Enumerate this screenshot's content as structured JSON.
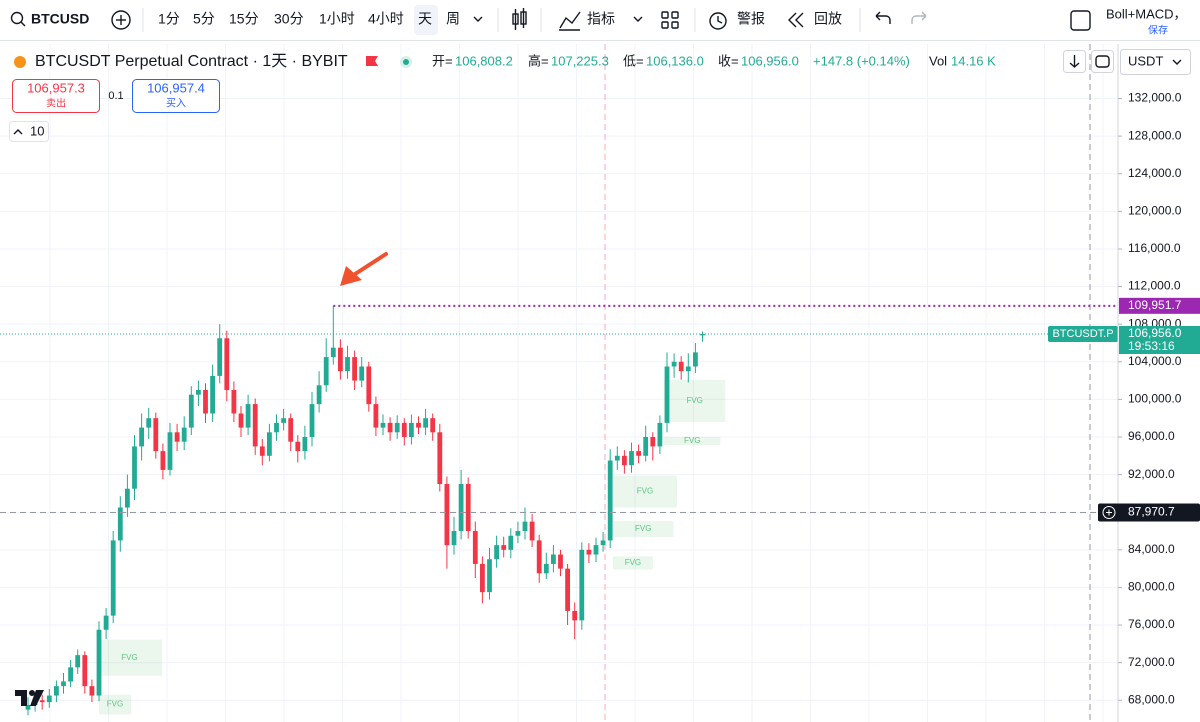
{
  "toolbar": {
    "symbol": "BTCUSD",
    "intervals": [
      "1分",
      "5分",
      "15分",
      "30分",
      "1小时",
      "4小时",
      "天",
      "周"
    ],
    "indicators": "指标",
    "alert": "警报",
    "replay": "回放",
    "layout_name": "Boll+MACD，",
    "save": "保存"
  },
  "legend": {
    "title": "BTCUSDT Perpetual Contract · 1天 · BYBIT",
    "open_label": "开=",
    "open": "106,808.2",
    "high_label": "高=",
    "high": "107,225.3",
    "low_label": "低=",
    "low": "106,136.0",
    "close_label": "收=",
    "close": "106,956.0",
    "change": "+147.8 (+0.14%)",
    "vol_label": "Vol",
    "vol": "14.16 K",
    "sell_price": "106,957.3",
    "sell": "卖出",
    "spread": "0.1",
    "buy_price": "106,957.4",
    "buy": "买入",
    "quantity": "10",
    "currency": "USDT"
  },
  "chart_data": {
    "type": "candlestick",
    "up_color": "#22ab94",
    "down_color": "#f23645",
    "grid": true,
    "ylim": [
      65900,
      137800
    ],
    "yticks": [
      {
        "value": 68000,
        "label": "68,000.0"
      },
      {
        "value": 72000,
        "label": "72,000.0"
      },
      {
        "value": 76000,
        "label": "76,000.0"
      },
      {
        "value": 80000,
        "label": "80,000.0"
      },
      {
        "value": 84000,
        "label": "84,000.0"
      },
      {
        "value": 88000,
        "label": "88,000.0"
      },
      {
        "value": 92000,
        "label": "92,000.0"
      },
      {
        "value": 96000,
        "label": "96,000.0"
      },
      {
        "value": 100000,
        "label": "100,000.0"
      },
      {
        "value": 104000,
        "label": "104,000.0"
      },
      {
        "value": 108000,
        "label": "108,000.0"
      },
      {
        "value": 112000,
        "label": "112,000.0"
      },
      {
        "value": 116000,
        "label": "116,000.0"
      },
      {
        "value": 120000,
        "label": "120,000.0"
      },
      {
        "value": 124000,
        "label": "124,000.0"
      },
      {
        "value": 128000,
        "label": "128,000.0"
      },
      {
        "value": 132000,
        "label": "132,000.0"
      }
    ],
    "open": [
      67000,
      67500,
      68000,
      67800,
      68500,
      69500,
      70000,
      71500,
      72800,
      69500,
      68500,
      75500,
      77000,
      85000,
      88500,
      90500,
      95000,
      97000,
      98000,
      94500,
      92500,
      96500,
      95500,
      97000,
      100500,
      101000,
      98500,
      102500,
      106500,
      101000,
      98500,
      97000,
      99500,
      95000,
      94000,
      96500,
      97500,
      98000,
      95500,
      94500,
      96000,
      99500,
      101500,
      104500,
      105500,
      103000,
      104500,
      102000,
      103500,
      99500,
      97000,
      97500,
      96500,
      97500,
      96000,
      97500,
      97000,
      98000,
      96500,
      91000,
      84500,
      86000,
      91000,
      86000,
      82500,
      79500,
      83000,
      84500,
      84000,
      85500,
      86000,
      87000,
      85000,
      81500,
      82500,
      83500,
      82000,
      77500,
      76500,
      84000,
      83500,
      84500,
      85000,
      93500,
      94000,
      93000,
      94500,
      94000,
      96000,
      95000,
      97500,
      103500,
      104000,
      103000,
      103500,
      106808.2
    ],
    "high": [
      68300,
      68700,
      68600,
      69200,
      70100,
      70900,
      72300,
      73400,
      73200,
      70200,
      76400,
      77800,
      86000,
      89700,
      92000,
      96200,
      98500,
      99100,
      98600,
      95300,
      97500,
      97400,
      98200,
      101400,
      102000,
      101700,
      103700,
      108000,
      107300,
      101900,
      99300,
      100500,
      100100,
      95800,
      97400,
      98400,
      99000,
      98500,
      96200,
      97200,
      100800,
      103000,
      106500,
      109951.7,
      106400,
      105700,
      105200,
      104500,
      104000,
      100300,
      98400,
      98100,
      98300,
      98000,
      98400,
      98200,
      99000,
      98500,
      97400,
      91800,
      87500,
      92500,
      91700,
      87000,
      83300,
      84200,
      85500,
      85400,
      86300,
      87000,
      88500,
      87800,
      85600,
      83700,
      84500,
      84000,
      82500,
      78400,
      84800,
      84700,
      85300,
      85900,
      94700,
      95000,
      94600,
      95400,
      95200,
      97200,
      96500,
      98300,
      105000,
      104900,
      104600,
      104900,
      106000,
      107225.3
    ],
    "low": [
      66400,
      66800,
      67000,
      67200,
      67800,
      68700,
      69400,
      70800,
      68700,
      67800,
      67900,
      74500,
      76200,
      83800,
      87500,
      89300,
      93500,
      95800,
      93700,
      91500,
      91900,
      94500,
      94600,
      96200,
      99300,
      97500,
      97600,
      101700,
      99800,
      97600,
      96000,
      96200,
      94100,
      93000,
      93400,
      95600,
      96700,
      94500,
      93300,
      93600,
      95000,
      98600,
      100800,
      103700,
      102100,
      102200,
      101000,
      101300,
      98700,
      96100,
      96200,
      95600,
      95800,
      95100,
      95200,
      96300,
      96200,
      95600,
      90200,
      82000,
      83500,
      85100,
      85200,
      81000,
      78300,
      78700,
      82100,
      83200,
      83100,
      84700,
      85100,
      84300,
      80500,
      80900,
      81600,
      81200,
      76000,
      74500,
      75500,
      82600,
      82700,
      83800,
      84200,
      92500,
      92100,
      92200,
      93200,
      93400,
      93500,
      94200,
      96500,
      102300,
      102100,
      101800,
      102800,
      106136
    ],
    "close": [
      67500,
      68000,
      67800,
      68500,
      69500,
      70000,
      71500,
      72800,
      69500,
      68500,
      75500,
      77000,
      85000,
      88500,
      90500,
      95000,
      97000,
      98000,
      94500,
      92500,
      96500,
      95500,
      97000,
      100500,
      101000,
      98500,
      102500,
      106500,
      101000,
      98500,
      97000,
      99500,
      95000,
      94000,
      96500,
      97500,
      98000,
      95500,
      94500,
      96000,
      99500,
      101500,
      104500,
      105500,
      103000,
      104500,
      102000,
      103500,
      99500,
      97000,
      97500,
      96500,
      97500,
      96000,
      97500,
      97000,
      98000,
      96500,
      91000,
      84500,
      86000,
      91000,
      86000,
      82500,
      79500,
      83000,
      84500,
      84000,
      85500,
      86000,
      87000,
      85000,
      81500,
      82500,
      83500,
      82000,
      77500,
      76500,
      84000,
      83500,
      84500,
      85000,
      93500,
      94000,
      93000,
      94500,
      94000,
      96000,
      95000,
      97500,
      103500,
      104000,
      103000,
      103500,
      105000,
      106956
    ],
    "fvg": [
      {
        "label": "FVG",
        "from": 10,
        "to": 14.5,
        "low": 66500,
        "high": 68600
      },
      {
        "label": "FVG",
        "from": 9.7,
        "to": 18.9,
        "low": 70600,
        "high": 74450
      },
      {
        "label": "FVG",
        "from": 82.4,
        "to": 88,
        "low": 81900,
        "high": 83300
      },
      {
        "label": "FVG",
        "from": 82.4,
        "to": 90.9,
        "low": 85350,
        "high": 87050
      },
      {
        "label": "FVG",
        "from": 82.4,
        "to": 91.4,
        "low": 88500,
        "high": 91900
      },
      {
        "label": "FVG",
        "from": 89.6,
        "to": 97.5,
        "low": 95150,
        "high": 96000
      },
      {
        "label": "FVG",
        "from": 89.6,
        "to": 98.2,
        "low": 97610,
        "high": 102080
      }
    ],
    "price_lines": [
      {
        "value": 109951.7,
        "label": "109,951.7",
        "color": "#9c27b0",
        "style": "dotted"
      },
      {
        "value": 106956,
        "label": "106,956.0",
        "color": "#22ab94",
        "style": "dotted",
        "name": "BTCUSDT.P",
        "countdown": "19:53:16"
      }
    ],
    "crosshair": {
      "value": 87970.7,
      "label": "87,970.7"
    }
  }
}
